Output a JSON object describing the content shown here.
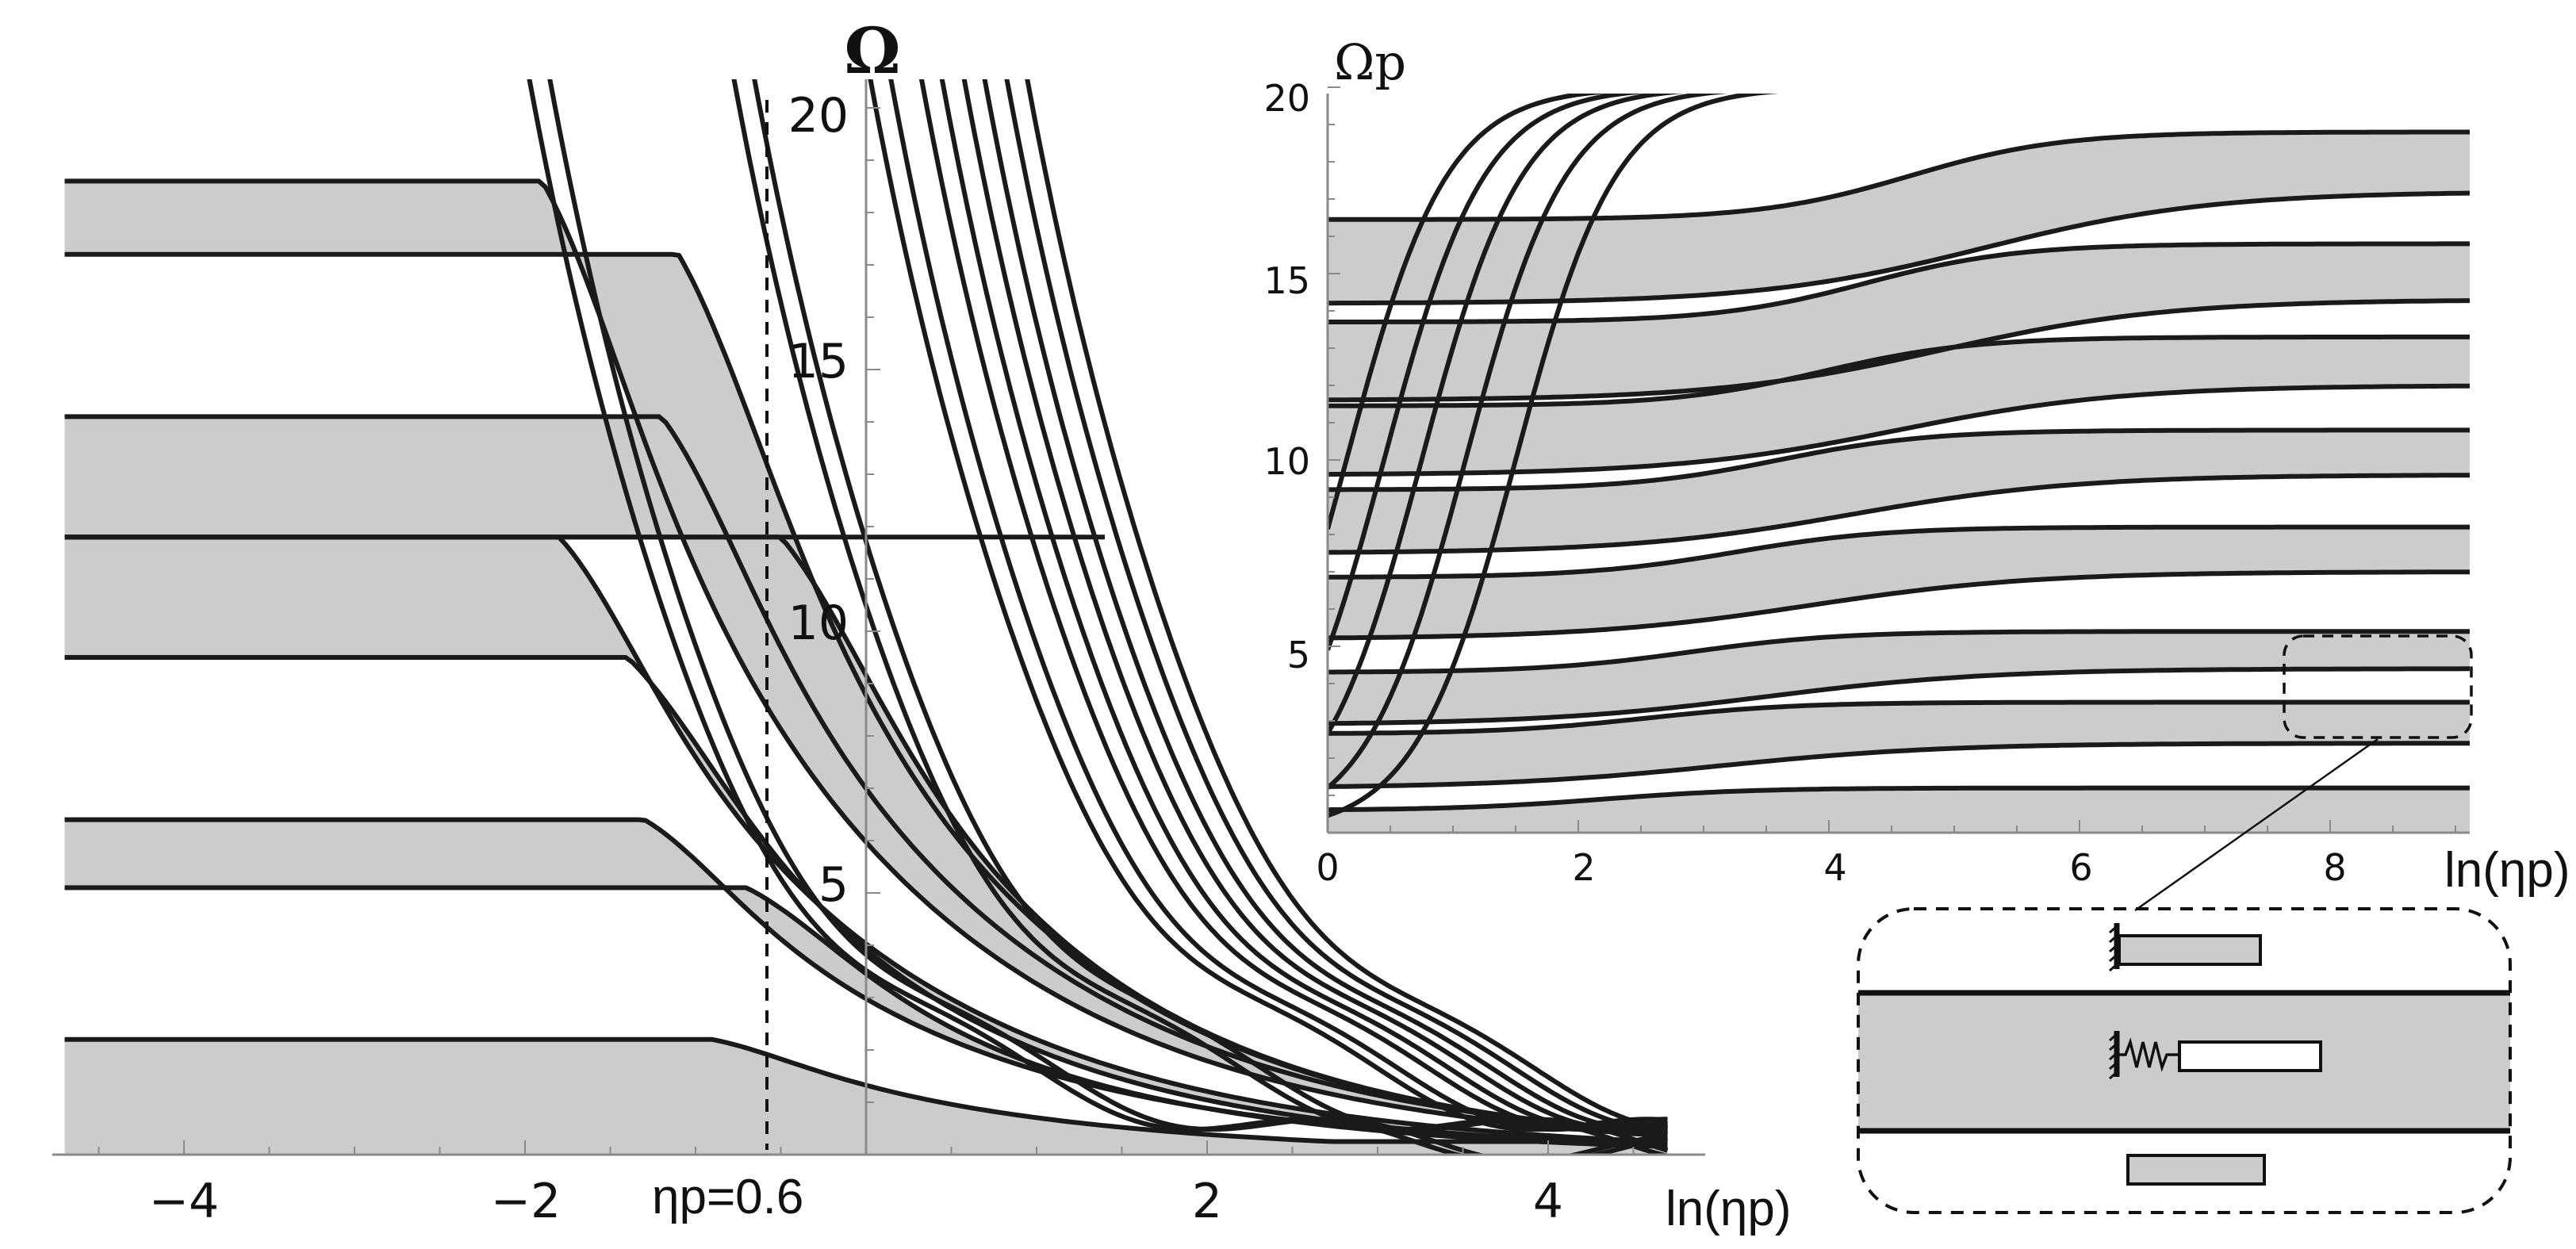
{
  "chart_data": [
    {
      "type": "area",
      "panel": "main",
      "ylabel": "Ω",
      "xlabel": "ln(ηp)",
      "xlim": [
        -5.0,
        5.0
      ],
      "ylim": [
        0,
        20
      ],
      "xticks": [
        -4,
        -2,
        2,
        4
      ],
      "xtick_labels": [
        "−4",
        "−2",
        "2",
        "4"
      ],
      "yticks": [
        5,
        10,
        15,
        20
      ],
      "ytick_labels": [
        "5",
        "10",
        "15",
        "20"
      ],
      "annotation": "ηp=0.6",
      "annotation_x": -0.6,
      "bands": [
        {
          "lower_left": 0.0,
          "upper_left": 2.2
        },
        {
          "lower_left": 5.1,
          "upper_left": 6.4
        },
        {
          "lower_left": 9.5,
          "upper_left": 11.8
        },
        {
          "lower_left": 11.8,
          "upper_left": 14.1
        },
        {
          "lower_left": 17.2,
          "upper_left": 18.6
        }
      ],
      "grid": false
    },
    {
      "type": "area",
      "panel": "inset",
      "ylabel": "Ωp",
      "xlabel": "ln(ηp)",
      "xlim": [
        0,
        9.3
      ],
      "ylim": [
        0,
        20
      ],
      "xticks": [
        0,
        2,
        4,
        6,
        8
      ],
      "xtick_labels": [
        "0",
        "2",
        "4",
        "6",
        "8"
      ],
      "yticks": [
        5,
        10,
        15,
        20
      ],
      "ytick_labels": [
        "5",
        "10",
        "15",
        "20"
      ],
      "bands": [
        {
          "upper_right": 1.2
        },
        {
          "lower_right": 2.4,
          "upper_right": 3.5
        },
        {
          "lower_right": 4.4,
          "upper_right": 5.4
        },
        {
          "lower_right": 7.0,
          "upper_right": 8.2
        },
        {
          "lower_right": 9.6,
          "upper_right": 10.8
        },
        {
          "lower_right": 12.0,
          "upper_right": 13.3
        },
        {
          "lower_right": 14.3,
          "upper_right": 15.8
        },
        {
          "lower_right": 17.2,
          "upper_right": 18.8
        }
      ],
      "grid": false
    }
  ],
  "colors": {
    "band": "#cccccc",
    "curve": "#1a1a1a",
    "axis": "#8a8a8a"
  }
}
